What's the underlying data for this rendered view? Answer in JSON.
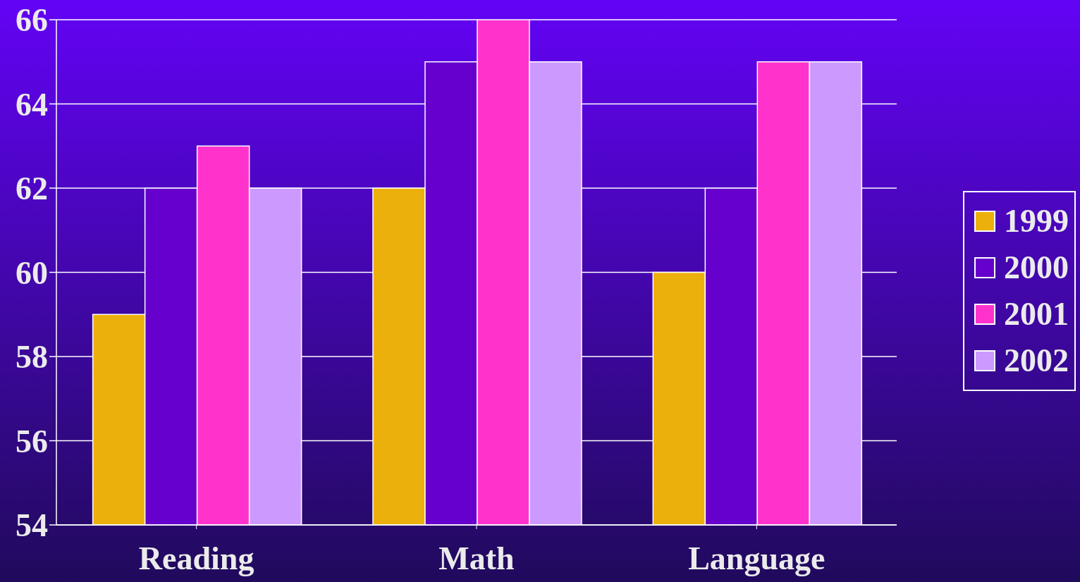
{
  "chart_data": {
    "type": "bar",
    "categories": [
      "Reading",
      "Math",
      "Language"
    ],
    "series": [
      {
        "name": "1999",
        "color": "#ecb00c",
        "values": [
          59,
          62,
          60
        ]
      },
      {
        "name": "2000",
        "color": "#6600cc",
        "values": [
          62,
          65,
          62
        ]
      },
      {
        "name": "2001",
        "color": "#ff33cc",
        "values": [
          63,
          66,
          65
        ]
      },
      {
        "name": "2002",
        "color": "#cc99ff",
        "values": [
          62,
          65,
          65
        ]
      }
    ],
    "ylim": [
      54,
      66
    ],
    "yticks": [
      54,
      56,
      58,
      60,
      62,
      64,
      66
    ],
    "grid": "y",
    "legend": "right"
  }
}
